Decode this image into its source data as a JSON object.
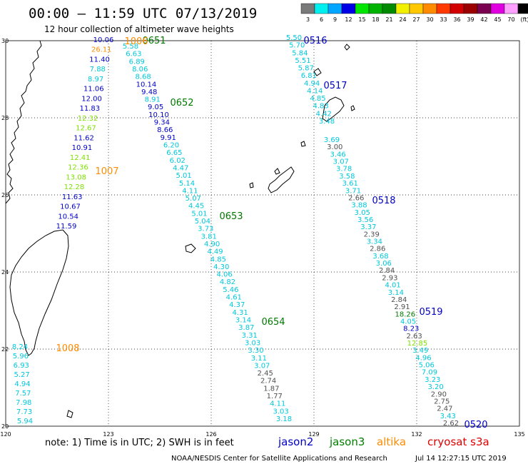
{
  "title": "00:00 – 11:59 UTC 07/13/2019",
  "subtitle": "12 hour collection of altimeter wave heights",
  "colorbar": {
    "labels": [
      "3",
      "6",
      "9",
      "12",
      "15",
      "18",
      "21",
      "24",
      "27",
      "30",
      "33",
      "36",
      "39",
      "42",
      "45",
      "70",
      "(ft)"
    ],
    "colors": [
      "#7a7a7a",
      "#00f0f0",
      "#00a6ff",
      "#0000e6",
      "#00e600",
      "#00b300",
      "#008a00",
      "#f0f000",
      "#ffc800",
      "#ff8c00",
      "#ff3a00",
      "#d20000",
      "#9a0000",
      "#7a0050",
      "#e000e0",
      "#ffa0ff",
      "#000000"
    ]
  },
  "axes": {
    "lon_labels": [
      "120",
      "123",
      "126",
      "129",
      "132",
      "135"
    ],
    "lat_labels": [
      "30",
      "28",
      "26",
      "24",
      "22",
      "20"
    ]
  },
  "colors": {
    "jason2": "#0000c8",
    "jason3": "#008000",
    "altika": "#ff8c00",
    "cryosat": "#e00000",
    "blue": "#0000c8",
    "green": "#007800",
    "orange": "#ff8c00",
    "cyan": "#00c8dc",
    "gray": "#505050",
    "lightgreen": "#7ee000",
    "yellow": "#c8c800",
    "darkblue": "#1a1aaa"
  },
  "passes": [
    {
      "id": "0651",
      "color": "green"
    },
    {
      "id": "0652",
      "color": "green"
    },
    {
      "id": "0653",
      "color": "green"
    },
    {
      "id": "0654",
      "color": "green"
    },
    {
      "id": "0516",
      "color": "blue"
    },
    {
      "id": "0517",
      "color": "blue"
    },
    {
      "id": "0518",
      "color": "blue"
    },
    {
      "id": "0519",
      "color": "blue"
    },
    {
      "id": "0520",
      "color": "blue"
    },
    {
      "id": "1006",
      "color": "orange"
    },
    {
      "id": "1007",
      "color": "orange"
    },
    {
      "id": "1008",
      "color": "orange"
    }
  ],
  "tracks": {
    "altika_north": [
      {
        "v": "10.06",
        "c": "blue"
      },
      {
        "v": "26.11",
        "c": "orange"
      },
      {
        "v": "11.40",
        "c": "blue"
      },
      {
        "v": "7.88",
        "c": "cyan"
      },
      {
        "v": "8.97",
        "c": "cyan"
      },
      {
        "v": "11.06",
        "c": "blue"
      },
      {
        "v": "12.00",
        "c": "blue"
      },
      {
        "v": "11.83",
        "c": "blue"
      },
      {
        "v": "12.32",
        "c": "lightgreen"
      },
      {
        "v": "12.67",
        "c": "lightgreen"
      },
      {
        "v": "11.62",
        "c": "blue"
      },
      {
        "v": "10.91",
        "c": "blue"
      },
      {
        "v": "12.41",
        "c": "lightgreen"
      },
      {
        "v": "12.36",
        "c": "lightgreen"
      },
      {
        "v": "13.08",
        "c": "lightgreen"
      },
      {
        "v": "12.28",
        "c": "lightgreen"
      },
      {
        "v": "11.63",
        "c": "blue"
      },
      {
        "v": "10.67",
        "c": "blue"
      },
      {
        "v": "10.54",
        "c": "blue"
      },
      {
        "v": "11.59",
        "c": "blue"
      }
    ],
    "altika_south": [
      {
        "v": "8.24",
        "c": "cyan"
      },
      {
        "v": "5.96",
        "c": "cyan"
      },
      {
        "v": "6.93",
        "c": "cyan"
      },
      {
        "v": "5.27",
        "c": "cyan"
      },
      {
        "v": "4.94",
        "c": "cyan"
      },
      {
        "v": "7.57",
        "c": "cyan"
      },
      {
        "v": "7.98",
        "c": "cyan"
      },
      {
        "v": "7.73",
        "c": "cyan"
      },
      {
        "v": "5.94",
        "c": "cyan"
      }
    ],
    "jason3": [
      {
        "v": "5.58",
        "c": "cyan"
      },
      {
        "v": "6.63",
        "c": "cyan"
      },
      {
        "v": "6.89",
        "c": "cyan"
      },
      {
        "v": "8.06",
        "c": "cyan"
      },
      {
        "v": "8.68",
        "c": "cyan"
      },
      {
        "v": "10.14",
        "c": "blue"
      },
      {
        "v": "9.48",
        "c": "blue"
      },
      {
        "v": "8.91",
        "c": "cyan"
      },
      {
        "v": "9.05",
        "c": "blue"
      },
      {
        "v": "10.10",
        "c": "blue"
      },
      {
        "v": "9.34",
        "c": "blue"
      },
      {
        "v": "8.66",
        "c": "blue"
      },
      {
        "v": "9.91",
        "c": "blue"
      },
      {
        "v": "6.20",
        "c": "cyan"
      },
      {
        "v": "6.65",
        "c": "cyan"
      },
      {
        "v": "6.02",
        "c": "cyan"
      },
      {
        "v": "4.47",
        "c": "cyan"
      },
      {
        "v": "5.01",
        "c": "cyan"
      },
      {
        "v": "5.14",
        "c": "cyan"
      },
      {
        "v": "4.11",
        "c": "cyan"
      },
      {
        "v": "5.07",
        "c": "cyan"
      },
      {
        "v": "4.45",
        "c": "cyan"
      },
      {
        "v": "5.01",
        "c": "cyan"
      },
      {
        "v": "5.04",
        "c": "cyan"
      },
      {
        "v": "3.73",
        "c": "cyan"
      },
      {
        "v": "3.81",
        "c": "cyan"
      },
      {
        "v": "4.90",
        "c": "cyan"
      },
      {
        "v": "4.49",
        "c": "cyan"
      },
      {
        "v": "4.85",
        "c": "cyan"
      },
      {
        "v": "4.30",
        "c": "cyan"
      },
      {
        "v": "4.06",
        "c": "cyan"
      },
      {
        "v": "4.82",
        "c": "cyan"
      },
      {
        "v": "5.46",
        "c": "cyan"
      },
      {
        "v": "4.61",
        "c": "cyan"
      },
      {
        "v": "4.37",
        "c": "cyan"
      },
      {
        "v": "4.31",
        "c": "cyan"
      },
      {
        "v": "3.14",
        "c": "cyan"
      },
      {
        "v": "3.87",
        "c": "cyan"
      },
      {
        "v": "3.31",
        "c": "cyan"
      },
      {
        "v": "3.03",
        "c": "cyan"
      },
      {
        "v": "3.30",
        "c": "cyan"
      },
      {
        "v": "3.11",
        "c": "cyan"
      },
      {
        "v": "3.07",
        "c": "cyan"
      },
      {
        "v": "2.45",
        "c": "gray"
      },
      {
        "v": "2.74",
        "c": "gray"
      },
      {
        "v": "1.87",
        "c": "gray"
      },
      {
        "v": "1.77",
        "c": "gray"
      },
      {
        "v": "4.11",
        "c": "cyan"
      },
      {
        "v": "3.03",
        "c": "cyan"
      },
      {
        "v": "3.18",
        "c": "cyan"
      }
    ],
    "jason2_north": [
      {
        "v": "5.50",
        "c": "cyan"
      },
      {
        "v": "5.70",
        "c": "cyan"
      },
      {
        "v": "5.84",
        "c": "cyan"
      },
      {
        "v": "5.51",
        "c": "cyan"
      },
      {
        "v": "5.87",
        "c": "cyan"
      },
      {
        "v": "6.81",
        "c": "cyan"
      },
      {
        "v": "4.94",
        "c": "cyan"
      },
      {
        "v": "4.14",
        "c": "cyan"
      },
      {
        "v": "4.85",
        "c": "cyan"
      },
      {
        "v": "4.83",
        "c": "cyan"
      },
      {
        "v": "4.42",
        "c": "cyan"
      },
      {
        "v": "3.48",
        "c": "cyan"
      }
    ],
    "jason2_south": [
      {
        "v": "3.69",
        "c": "cyan"
      },
      {
        "v": "3.00",
        "c": "gray"
      },
      {
        "v": "3.46",
        "c": "cyan"
      },
      {
        "v": "3.07",
        "c": "cyan"
      },
      {
        "v": "3.78",
        "c": "cyan"
      },
      {
        "v": "3.58",
        "c": "cyan"
      },
      {
        "v": "3.61",
        "c": "cyan"
      },
      {
        "v": "3.71",
        "c": "cyan"
      },
      {
        "v": "2.66",
        "c": "gray"
      },
      {
        "v": "3.88",
        "c": "cyan"
      },
      {
        "v": "3.05",
        "c": "cyan"
      },
      {
        "v": "3.56",
        "c": "cyan"
      },
      {
        "v": "3.37",
        "c": "cyan"
      },
      {
        "v": "2.39",
        "c": "gray"
      },
      {
        "v": "3.34",
        "c": "cyan"
      },
      {
        "v": "2.86",
        "c": "gray"
      },
      {
        "v": "3.68",
        "c": "cyan"
      },
      {
        "v": "3.06",
        "c": "cyan"
      },
      {
        "v": "2.84",
        "c": "gray"
      },
      {
        "v": "2.93",
        "c": "gray"
      },
      {
        "v": "4.01",
        "c": "cyan"
      },
      {
        "v": "3.14",
        "c": "cyan"
      },
      {
        "v": "2.84",
        "c": "gray"
      },
      {
        "v": "2.91",
        "c": "gray"
      },
      {
        "v": "18.26",
        "c": "green"
      },
      {
        "v": "4.05",
        "c": "cyan"
      },
      {
        "v": "8.23",
        "c": "blue"
      },
      {
        "v": "2.63",
        "c": "gray"
      },
      {
        "v": "12.85",
        "c": "lightgreen"
      },
      {
        "v": "3.49",
        "c": "cyan"
      },
      {
        "v": "4.96",
        "c": "cyan"
      },
      {
        "v": "5.06",
        "c": "cyan"
      },
      {
        "v": "7.09",
        "c": "cyan"
      },
      {
        "v": "3.23",
        "c": "cyan"
      },
      {
        "v": "3.20",
        "c": "cyan"
      },
      {
        "v": "2.90",
        "c": "gray"
      },
      {
        "v": "2.75",
        "c": "gray"
      },
      {
        "v": "2.47",
        "c": "gray"
      },
      {
        "v": "3.43",
        "c": "cyan"
      },
      {
        "v": "2.62",
        "c": "gray"
      }
    ]
  },
  "note": "note:  1) Time is in UTC;  2) SWH is in feet",
  "satellites": [
    {
      "name": "jason2",
      "color": "jason2"
    },
    {
      "name": "jason3",
      "color": "jason3"
    },
    {
      "name": "altika",
      "color": "altika"
    },
    {
      "name": "cryosat s3a",
      "color": "cryosat"
    }
  ],
  "credit_left": "NOAA/NESDIS Center for Satellite Applications and Research",
  "credit_right": "Jul 14 12:27:15 UTC 2019"
}
